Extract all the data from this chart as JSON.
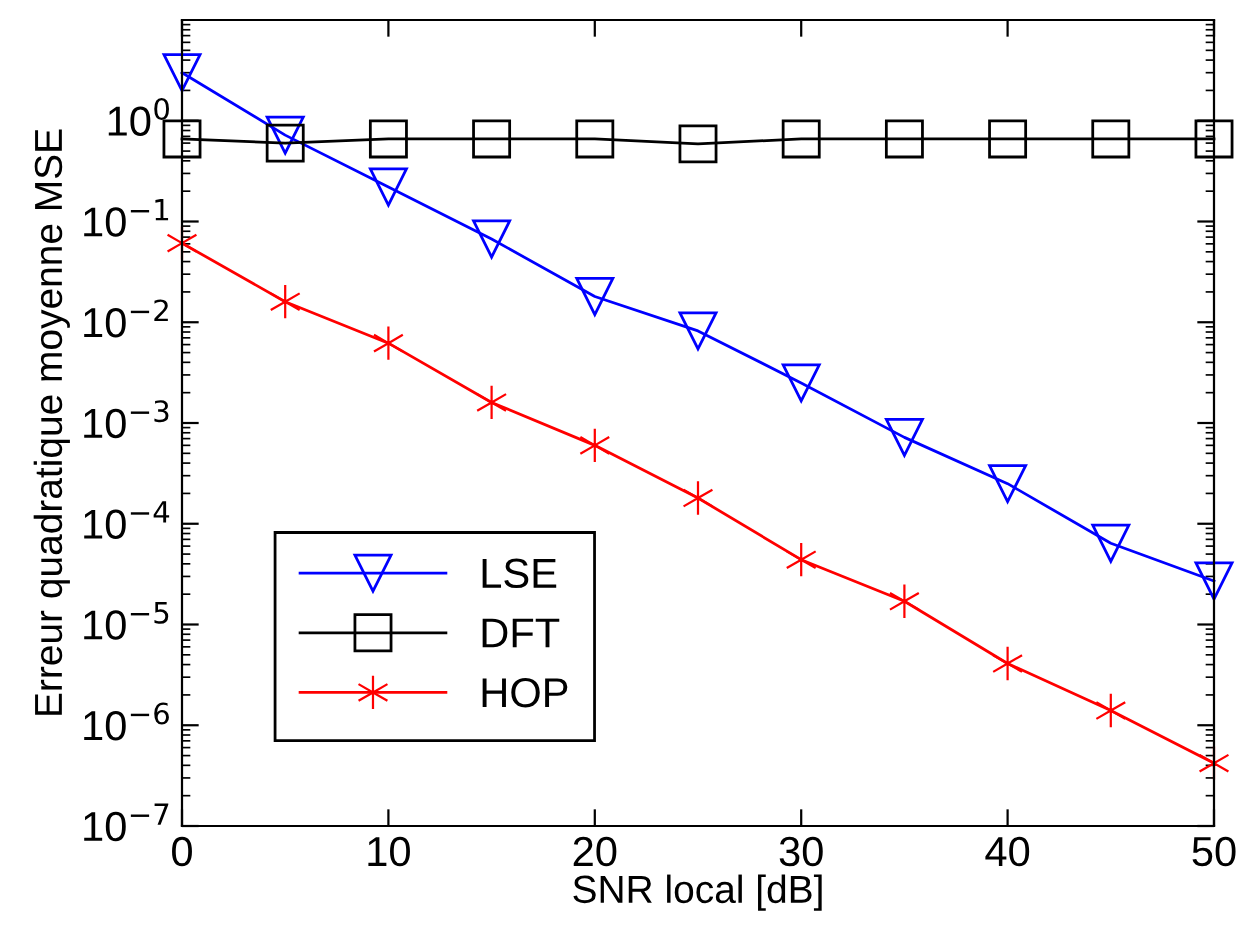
{
  "chart_data": {
    "type": "line",
    "xlabel": "SNR local [dB]",
    "ylabel": "Erreur quadratique moyenne MSE",
    "x": [
      0,
      5,
      10,
      15,
      20,
      25,
      30,
      35,
      40,
      45,
      50
    ],
    "series": [
      {
        "name": "LSE",
        "color": "#0000ff",
        "marker": "triangle",
        "values": [
          3.0,
          0.72,
          0.22,
          0.067,
          0.018,
          0.0082,
          0.0025,
          0.00072,
          0.00025,
          6.4e-05,
          2.7e-05
        ]
      },
      {
        "name": "DFT",
        "color": "#000000",
        "marker": "square",
        "values": [
          0.66,
          0.6,
          0.66,
          0.66,
          0.66,
          0.59,
          0.66,
          0.66,
          0.66,
          0.66,
          0.66
        ]
      },
      {
        "name": "HOP",
        "color": "#ff0000",
        "marker": "cross",
        "values": [
          0.061,
          0.016,
          0.0062,
          0.0016,
          0.0006,
          0.00018,
          4.4e-05,
          1.7e-05,
          4.1e-06,
          1.4e-06,
          4.2e-07
        ]
      }
    ],
    "log": "y",
    "xlim": [
      0,
      50
    ],
    "ylim": [
      1e-07,
      10
    ],
    "xticks": [
      0,
      10,
      20,
      30,
      40,
      50
    ],
    "yticks": [
      {
        "value": 1e-07,
        "label": "10$^{−7}$"
      },
      {
        "value": 1e-06,
        "label": "10$^{−6}$"
      },
      {
        "value": 1e-05,
        "label": "10$^{−5}$"
      },
      {
        "value": 0.0001,
        "label": "10$^{−4}$"
      },
      {
        "value": 0.001,
        "label": "10$^{−3}$"
      },
      {
        "value": 0.01,
        "label": "10$^{−2}$"
      },
      {
        "value": 0.1,
        "label": "10$^{−1}$"
      },
      {
        "value": 1,
        "label": "10$^{0}$"
      }
    ],
    "grid": false,
    "legend": "bottom left",
    "line_style": "solid"
  }
}
